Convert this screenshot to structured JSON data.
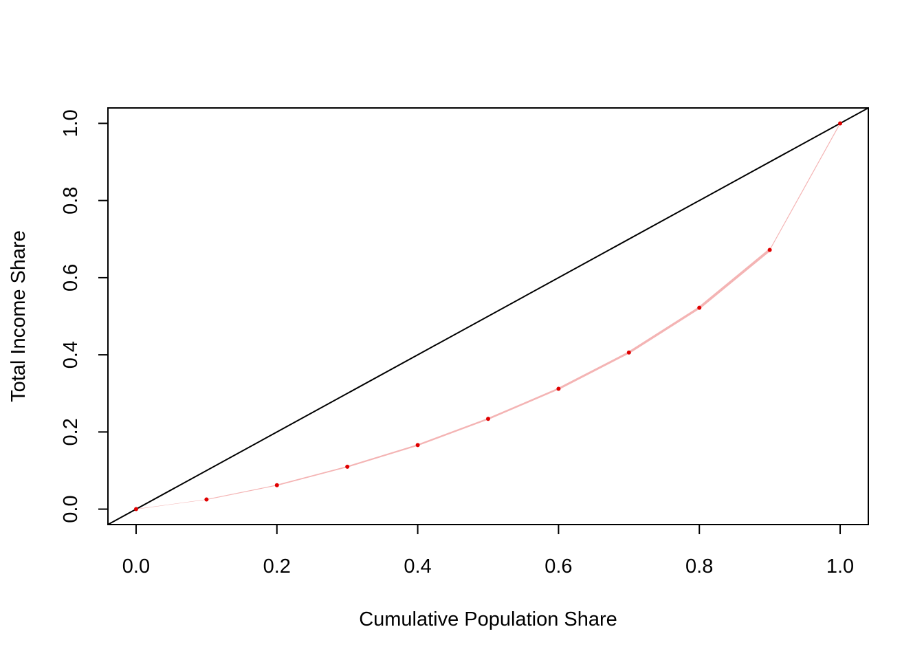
{
  "chart_data": {
    "type": "line",
    "title": "",
    "xlabel": "Cumulative Population Share",
    "ylabel": "Total Income Share",
    "xlim": [
      -0.04,
      1.04
    ],
    "ylim": [
      -0.04,
      1.04
    ],
    "x_ticks": [
      0.0,
      0.2,
      0.4,
      0.6,
      0.8,
      1.0
    ],
    "x_tick_labels": [
      "0.0",
      "0.2",
      "0.4",
      "0.6",
      "0.8",
      "1.0"
    ],
    "y_ticks": [
      0.0,
      0.2,
      0.4,
      0.6,
      0.8,
      1.0
    ],
    "y_tick_labels": [
      "0.0",
      "0.2",
      "0.4",
      "0.6",
      "0.8",
      "1.0"
    ],
    "grid": false,
    "legend": "none",
    "series": [
      {
        "kind": "reference-line",
        "color": "#000000",
        "x": [
          -0.04,
          1.04
        ],
        "y": [
          -0.04,
          1.04
        ]
      },
      {
        "kind": "lorenz-curve",
        "line_color": "#f4b4b4",
        "point_color": "#e00000",
        "x": [
          0.0,
          0.1,
          0.2,
          0.3,
          0.4,
          0.5,
          0.6,
          0.7,
          0.8,
          0.9,
          1.0
        ],
        "y": [
          0.0,
          0.025,
          0.062,
          0.11,
          0.166,
          0.234,
          0.312,
          0.406,
          0.522,
          0.672,
          1.0
        ]
      }
    ]
  }
}
